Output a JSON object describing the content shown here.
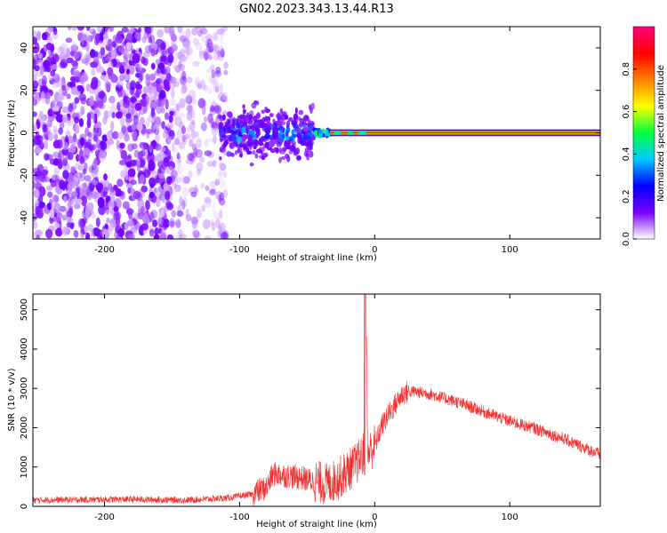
{
  "title": "GN02.2023.343.13.44.R13",
  "chart_data": [
    {
      "type": "heatmap",
      "name": "spectrogram",
      "xlabel": "Height of straight line (km)",
      "ylabel": "Frequency (Hz)",
      "xlim": [
        -253,
        167
      ],
      "ylim": [
        -50,
        50
      ],
      "xticks": [
        -200,
        -100,
        0,
        100
      ],
      "yticks": [
        40,
        20,
        0,
        -20,
        -40
      ],
      "colorbar": {
        "label": "Normalized spectral amplitude",
        "range": [
          0,
          1
        ],
        "ticks": [
          0.0,
          0.2,
          0.4,
          0.6,
          0.8
        ],
        "colors": [
          "#ffffff",
          "#7a00ff",
          "#0000ff",
          "#00c8ff",
          "#00ff40",
          "#ffff00",
          "#ff8000",
          "#ff0000",
          "#ff0080"
        ]
      },
      "regions": [
        {
          "label": "diffuse noise",
          "x": [
            -253,
            -150
          ],
          "freq": [
            -50,
            50
          ],
          "amplitude": 0.15
        },
        {
          "label": "noise fade",
          "x": [
            -150,
            -110
          ],
          "freq": [
            -50,
            50
          ],
          "amplitude": 0.05
        },
        {
          "label": "signal onset cluster",
          "x": [
            -115,
            -45
          ],
          "freq": [
            -8,
            8
          ],
          "amplitude": 0.3
        },
        {
          "label": "carrier line",
          "x": [
            -33,
            167
          ],
          "freq": [
            -1,
            1
          ],
          "amplitude": 0.95
        }
      ]
    },
    {
      "type": "line",
      "name": "snr",
      "xlabel": "Height of straight line (km)",
      "ylabel": "SNR (10 * v/v)",
      "xlim": [
        -253,
        167
      ],
      "ylim": [
        0,
        5400
      ],
      "xticks": [
        -200,
        -100,
        0,
        100
      ],
      "yticks": [
        0,
        1000,
        2000,
        3000,
        4000,
        5000
      ],
      "series": [
        {
          "name": "SNR",
          "color": "#f03030",
          "x": [
            -253,
            -220,
            -180,
            -140,
            -110,
            -90,
            -80,
            -75,
            -65,
            -55,
            -45,
            -35,
            -25,
            -18,
            -12,
            -8,
            -7,
            -5,
            0,
            5,
            10,
            15,
            20,
            25,
            30,
            40,
            50,
            60,
            80,
            100,
            120,
            140,
            160,
            167
          ],
          "y": [
            150,
            160,
            170,
            150,
            200,
            300,
            450,
            800,
            750,
            700,
            600,
            500,
            700,
            900,
            1100,
            1300,
            5400,
            1300,
            1500,
            2000,
            2300,
            2550,
            2800,
            2900,
            2900,
            2850,
            2750,
            2650,
            2400,
            2150,
            1950,
            1700,
            1400,
            1300
          ]
        }
      ]
    }
  ]
}
